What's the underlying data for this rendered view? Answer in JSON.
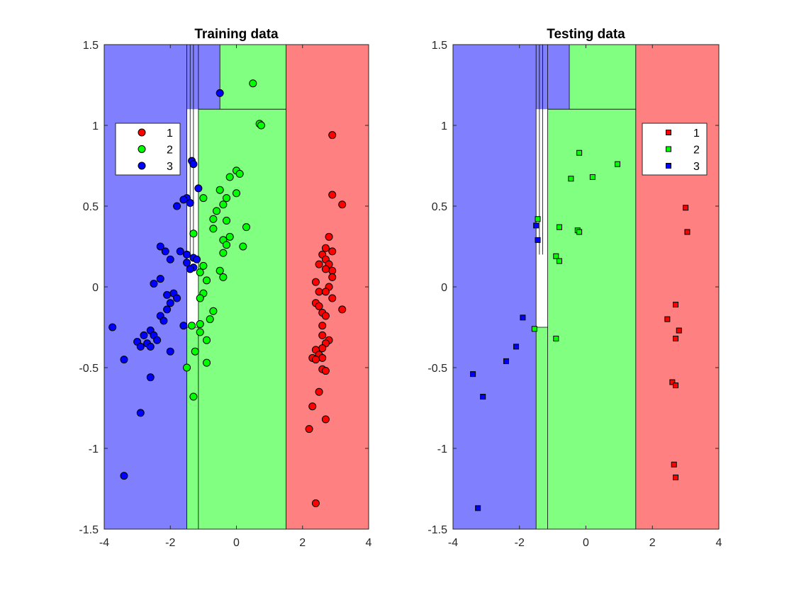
{
  "chart_data": [
    {
      "type": "scatter",
      "title": "Training data",
      "xlim": [
        -4,
        4
      ],
      "ylim": [
        -1.5,
        1.5
      ],
      "xticks": [
        "-4",
        "-2",
        "0",
        "2",
        "4"
      ],
      "yticks": [
        "-1.5",
        "-1",
        "-0.5",
        "0",
        "0.5",
        "1",
        "1.5"
      ],
      "marker": "circle",
      "legend": {
        "placement": "top-left",
        "entries": [
          "1",
          "2",
          "3"
        ]
      },
      "regions": [
        {
          "class": "3",
          "x": [
            -4,
            -1.5
          ],
          "y": [
            -1.5,
            1.5
          ]
        },
        {
          "class": "3",
          "x": [
            -1.5,
            -1.15
          ],
          "y": [
            1.1,
            1.5
          ]
        },
        {
          "class": "2",
          "x": [
            -1.5,
            -1.15
          ],
          "y": [
            -1.5,
            -0.25
          ]
        },
        {
          "class": "3",
          "x": [
            -1.15,
            -0.5
          ],
          "y": [
            1.1,
            1.5
          ]
        },
        {
          "class": "2",
          "x": [
            -0.5,
            1.5
          ],
          "y": [
            1.1,
            1.5
          ]
        },
        {
          "class": "2",
          "x": [
            -1.15,
            1.5
          ],
          "y": [
            -1.5,
            1.1
          ]
        },
        {
          "class": "1",
          "x": [
            1.5,
            4
          ],
          "y": [
            -1.5,
            1.5
          ]
        }
      ],
      "boundaries": [
        [
          [
            -1.5,
            -1.5
          ],
          [
            -1.5,
            1.5
          ]
        ],
        [
          [
            -1.15,
            -1.5
          ],
          [
            -1.15,
            1.5
          ]
        ],
        [
          [
            -1.5,
            -0.25
          ],
          [
            -1.15,
            -0.25
          ]
        ],
        [
          [
            -1.15,
            1.1
          ],
          [
            1.5,
            1.1
          ]
        ],
        [
          [
            -0.5,
            1.1
          ],
          [
            -0.5,
            1.5
          ]
        ],
        [
          [
            1.5,
            -1.5
          ],
          [
            1.5,
            1.5
          ]
        ],
        [
          [
            -1.4,
            1.5
          ],
          [
            -1.4,
            0.2
          ]
        ],
        [
          [
            -1.3,
            1.5
          ],
          [
            -1.3,
            0.2
          ]
        ]
      ],
      "series": [
        {
          "name": "1",
          "color": "#ff0000",
          "points": [
            [
              2.9,
              0.94
            ],
            [
              2.9,
              0.57
            ],
            [
              3.2,
              0.51
            ],
            [
              2.8,
              0.31
            ],
            [
              2.7,
              0.24
            ],
            [
              2.9,
              0.22
            ],
            [
              2.6,
              0.2
            ],
            [
              2.7,
              0.17
            ],
            [
              2.8,
              0.14
            ],
            [
              2.5,
              0.14
            ],
            [
              2.9,
              0.1
            ],
            [
              2.7,
              0.11
            ],
            [
              2.9,
              0.06
            ],
            [
              2.4,
              0.03
            ],
            [
              2.8,
              0.0
            ],
            [
              2.5,
              -0.03
            ],
            [
              2.7,
              -0.03
            ],
            [
              2.9,
              -0.07
            ],
            [
              2.4,
              -0.1
            ],
            [
              2.5,
              -0.12
            ],
            [
              2.6,
              -0.16
            ],
            [
              3.2,
              -0.14
            ],
            [
              2.7,
              -0.18
            ],
            [
              2.6,
              -0.24
            ],
            [
              2.6,
              -0.3
            ],
            [
              2.8,
              -0.33
            ],
            [
              2.7,
              -0.35
            ],
            [
              2.6,
              -0.38
            ],
            [
              2.4,
              -0.39
            ],
            [
              2.5,
              -0.42
            ],
            [
              2.3,
              -0.44
            ],
            [
              2.6,
              -0.44
            ],
            [
              2.4,
              -0.45
            ],
            [
              2.6,
              -0.51
            ],
            [
              2.7,
              -0.52
            ],
            [
              2.5,
              -0.65
            ],
            [
              2.3,
              -0.74
            ],
            [
              2.7,
              -0.82
            ],
            [
              2.2,
              -0.88
            ],
            [
              2.4,
              -1.34
            ]
          ]
        },
        {
          "name": "2",
          "color": "#00ff00",
          "points": [
            [
              0.5,
              1.26
            ],
            [
              0.7,
              1.01
            ],
            [
              0.75,
              1.0
            ],
            [
              0.0,
              0.72
            ],
            [
              0.1,
              0.7
            ],
            [
              -0.2,
              0.68
            ],
            [
              -0.5,
              0.6
            ],
            [
              -0.3,
              0.55
            ],
            [
              0.0,
              0.58
            ],
            [
              -1.0,
              0.55
            ],
            [
              -0.4,
              0.51
            ],
            [
              -0.6,
              0.47
            ],
            [
              -0.7,
              0.42
            ],
            [
              -0.3,
              0.41
            ],
            [
              -0.7,
              0.36
            ],
            [
              0.3,
              0.37
            ],
            [
              -1.3,
              0.33
            ],
            [
              -0.2,
              0.31
            ],
            [
              -0.4,
              0.29
            ],
            [
              -0.3,
              0.26
            ],
            [
              0.2,
              0.25
            ],
            [
              -0.4,
              0.21
            ],
            [
              -1.0,
              0.13
            ],
            [
              -1.1,
              0.09
            ],
            [
              -0.5,
              0.1
            ],
            [
              -0.4,
              0.06
            ],
            [
              -0.9,
              0.04
            ],
            [
              -1.0,
              -0.04
            ],
            [
              -1.1,
              -0.07
            ],
            [
              -0.7,
              -0.15
            ],
            [
              -0.8,
              -0.2
            ],
            [
              -1.1,
              -0.23
            ],
            [
              -1.35,
              -0.24
            ],
            [
              -1.1,
              -0.28
            ],
            [
              -0.9,
              -0.33
            ],
            [
              -1.25,
              -0.4
            ],
            [
              -0.9,
              -0.47
            ],
            [
              -1.5,
              -0.5
            ],
            [
              -1.3,
              -0.68
            ]
          ]
        },
        {
          "name": "3",
          "color": "#0000ff",
          "points": [
            [
              -0.5,
              1.2
            ],
            [
              -1.35,
              0.78
            ],
            [
              -1.3,
              0.76
            ],
            [
              -1.15,
              0.61
            ],
            [
              -1.5,
              0.55
            ],
            [
              -1.6,
              0.54
            ],
            [
              -1.8,
              0.5
            ],
            [
              -1.4,
              0.52
            ],
            [
              -2.3,
              0.25
            ],
            [
              -2.15,
              0.22
            ],
            [
              -2.0,
              0.17
            ],
            [
              -1.7,
              0.22
            ],
            [
              -1.5,
              0.2
            ],
            [
              -1.3,
              0.18
            ],
            [
              -1.2,
              0.17
            ],
            [
              -1.5,
              0.15
            ],
            [
              -1.3,
              0.12
            ],
            [
              -1.4,
              0.11
            ],
            [
              -2.3,
              0.05
            ],
            [
              -2.5,
              0.02
            ],
            [
              -1.9,
              -0.04
            ],
            [
              -2.1,
              -0.05
            ],
            [
              -1.8,
              -0.07
            ],
            [
              -2.0,
              -0.1
            ],
            [
              -2.1,
              -0.14
            ],
            [
              -2.3,
              -0.18
            ],
            [
              -2.2,
              -0.21
            ],
            [
              -1.6,
              -0.24
            ],
            [
              -3.75,
              -0.25
            ],
            [
              -2.6,
              -0.27
            ],
            [
              -2.8,
              -0.3
            ],
            [
              -2.5,
              -0.3
            ],
            [
              -2.4,
              -0.33
            ],
            [
              -3.0,
              -0.34
            ],
            [
              -2.7,
              -0.35
            ],
            [
              -2.9,
              -0.37
            ],
            [
              -2.6,
              -0.37
            ],
            [
              -2.0,
              -0.4
            ],
            [
              -3.4,
              -0.45
            ],
            [
              -2.6,
              -0.56
            ],
            [
              -2.9,
              -0.78
            ],
            [
              -3.4,
              -1.17
            ]
          ]
        }
      ]
    },
    {
      "type": "scatter",
      "title": "Testing data",
      "xlim": [
        -4,
        4
      ],
      "ylim": [
        -1.5,
        1.5
      ],
      "xticks": [
        "-4",
        "-2",
        "0",
        "2",
        "4"
      ],
      "yticks": [
        "-1.5",
        "-1",
        "-0.5",
        "0",
        "0.5",
        "1",
        "1.5"
      ],
      "marker": "square",
      "legend": {
        "placement": "top-right",
        "entries": [
          "1",
          "2",
          "3"
        ]
      },
      "regions": [
        {
          "class": "3",
          "x": [
            -4,
            -1.5
          ],
          "y": [
            -1.5,
            1.5
          ]
        },
        {
          "class": "3",
          "x": [
            -1.5,
            -1.15
          ],
          "y": [
            1.1,
            1.5
          ]
        },
        {
          "class": "2",
          "x": [
            -1.5,
            -1.15
          ],
          "y": [
            -1.5,
            -0.25
          ]
        },
        {
          "class": "3",
          "x": [
            -1.15,
            -0.5
          ],
          "y": [
            1.1,
            1.5
          ]
        },
        {
          "class": "2",
          "x": [
            -0.5,
            1.5
          ],
          "y": [
            1.1,
            1.5
          ]
        },
        {
          "class": "2",
          "x": [
            -1.15,
            1.5
          ],
          "y": [
            -1.5,
            1.1
          ]
        },
        {
          "class": "1",
          "x": [
            1.5,
            4
          ],
          "y": [
            -1.5,
            1.5
          ]
        }
      ],
      "boundaries": [
        [
          [
            -1.5,
            -1.5
          ],
          [
            -1.5,
            1.5
          ]
        ],
        [
          [
            -1.15,
            -1.5
          ],
          [
            -1.15,
            1.5
          ]
        ],
        [
          [
            -1.5,
            -0.25
          ],
          [
            -1.15,
            -0.25
          ]
        ],
        [
          [
            -1.15,
            1.1
          ],
          [
            1.5,
            1.1
          ]
        ],
        [
          [
            -0.5,
            1.1
          ],
          [
            -0.5,
            1.5
          ]
        ],
        [
          [
            1.5,
            -1.5
          ],
          [
            1.5,
            1.5
          ]
        ],
        [
          [
            -1.4,
            1.5
          ],
          [
            -1.4,
            0.2
          ]
        ],
        [
          [
            -1.3,
            1.5
          ],
          [
            -1.3,
            0.2
          ]
        ]
      ],
      "series": [
        {
          "name": "1",
          "color": "#ff0000",
          "points": [
            [
              3.0,
              0.49
            ],
            [
              3.05,
              0.34
            ],
            [
              2.7,
              -0.11
            ],
            [
              2.45,
              -0.2
            ],
            [
              2.8,
              -0.27
            ],
            [
              2.7,
              -0.32
            ],
            [
              2.6,
              -0.59
            ],
            [
              2.7,
              -0.61
            ],
            [
              2.65,
              -1.1
            ],
            [
              2.7,
              -1.18
            ]
          ]
        },
        {
          "name": "2",
          "color": "#00ff00",
          "points": [
            [
              -0.2,
              0.83
            ],
            [
              0.95,
              0.76
            ],
            [
              0.2,
              0.68
            ],
            [
              -0.45,
              0.67
            ],
            [
              -1.45,
              0.42
            ],
            [
              -0.8,
              0.37
            ],
            [
              -0.25,
              0.35
            ],
            [
              -0.2,
              0.34
            ],
            [
              -0.9,
              0.19
            ],
            [
              -0.8,
              0.16
            ],
            [
              -1.55,
              -0.26
            ],
            [
              -0.9,
              -0.32
            ]
          ]
        },
        {
          "name": "3",
          "color": "#0000ff",
          "points": [
            [
              -1.5,
              0.38
            ],
            [
              -1.45,
              0.29
            ],
            [
              -1.9,
              -0.19
            ],
            [
              -2.1,
              -0.37
            ],
            [
              -2.4,
              -0.46
            ],
            [
              -3.4,
              -0.54
            ],
            [
              -3.1,
              -0.68
            ],
            [
              -3.25,
              -1.37
            ]
          ]
        }
      ]
    }
  ],
  "colors": {
    "class_1_region": "#ff8080",
    "class_2_region": "#80ff80",
    "class_3_region": "#8080ff"
  }
}
